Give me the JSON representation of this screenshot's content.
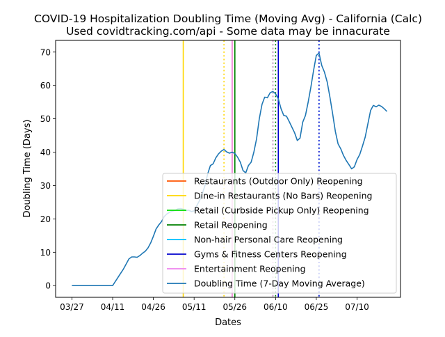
{
  "chart_data": {
    "type": "line",
    "title": "COVID-19 Hospitalization Doubling Time (Moving Avg) - California (Calc)",
    "subtitle": "Used covidtracking.com/api - Some data may be innacurate",
    "xlabel": "Dates",
    "ylabel": "Doubling Time (Days)",
    "x_range": [
      "2020-03-21",
      "2020-07-26"
    ],
    "ylim": [
      -3.5,
      73.5
    ],
    "x_ticks": [
      {
        "date": "2020-03-27",
        "label": "03/27"
      },
      {
        "date": "2020-04-11",
        "label": "04/11"
      },
      {
        "date": "2020-04-26",
        "label": "04/26"
      },
      {
        "date": "2020-05-11",
        "label": "05/11"
      },
      {
        "date": "2020-05-26",
        "label": "05/26"
      },
      {
        "date": "2020-06-10",
        "label": "06/10"
      },
      {
        "date": "2020-06-25",
        "label": "06/25"
      },
      {
        "date": "2020-07-10",
        "label": "07/10"
      }
    ],
    "y_ticks": [
      0,
      10,
      20,
      30,
      40,
      50,
      60,
      70
    ],
    "grid": false,
    "legend_position": "lower-right",
    "events": [
      {
        "name": "Restaurants (Outdoor Only) Reopening",
        "color": "#ff5500",
        "lines": [
          {
            "date": "2020-05-25",
            "style": "solid"
          }
        ]
      },
      {
        "name": "Dine-in Restaurants (No Bars) Reopening",
        "color": "#ffd700",
        "lines": [
          {
            "date": "2020-05-07",
            "style": "solid"
          },
          {
            "date": "2020-05-22",
            "style": "dotted"
          }
        ]
      },
      {
        "name": "Retail (Curbside Pickup Only) Reopening",
        "color": "#00dd00",
        "lines": [
          {
            "date": "2020-05-26",
            "style": "solid"
          },
          {
            "date": "2020-06-09",
            "style": "dotted"
          }
        ]
      },
      {
        "name": "Retail Reopening",
        "color": "#008000",
        "lines": [
          {
            "date": "2020-05-26",
            "style": "solid"
          },
          {
            "date": "2020-06-10",
            "style": "dotted"
          }
        ]
      },
      {
        "name": "Non-hair Personal Care Reopening",
        "color": "#00bfff",
        "lines": [
          {
            "date": "2020-06-26",
            "style": "dotted"
          }
        ]
      },
      {
        "name": "Gyms & Fitness Centers Reopening",
        "color": "#0000cd",
        "lines": [
          {
            "date": "2020-06-11",
            "style": "solid"
          },
          {
            "date": "2020-06-26",
            "style": "dotted"
          }
        ]
      },
      {
        "name": "Entertainment Reopening",
        "color": "#ee82ee",
        "lines": [
          {
            "date": "2020-05-25",
            "style": "solid"
          },
          {
            "date": "2020-06-09",
            "style": "dotted"
          }
        ]
      }
    ],
    "series": [
      {
        "name": "Doubling Time (7-Day Moving Average)",
        "color": "#1f77b4",
        "x": [
          "2020-03-27",
          "2020-03-30",
          "2020-04-02",
          "2020-04-05",
          "2020-04-08",
          "2020-04-11",
          "2020-04-13",
          "2020-04-15",
          "2020-04-17",
          "2020-04-18",
          "2020-04-19",
          "2020-04-20",
          "2020-04-21",
          "2020-04-22",
          "2020-04-23",
          "2020-04-24",
          "2020-04-25",
          "2020-04-26",
          "2020-04-27",
          "2020-04-28",
          "2020-04-29",
          "2020-04-30",
          "2020-05-01",
          "2020-05-02",
          "2020-05-03",
          "2020-05-04",
          "2020-05-05",
          "2020-05-06",
          "2020-05-07",
          "2020-05-08",
          "2020-05-09",
          "2020-05-10",
          "2020-05-11",
          "2020-05-12",
          "2020-05-13",
          "2020-05-14",
          "2020-05-15",
          "2020-05-16",
          "2020-05-17",
          "2020-05-18",
          "2020-05-19",
          "2020-05-20",
          "2020-05-21",
          "2020-05-22",
          "2020-05-23",
          "2020-05-24",
          "2020-05-25",
          "2020-05-26",
          "2020-05-27",
          "2020-05-28",
          "2020-05-29",
          "2020-05-30",
          "2020-05-31",
          "2020-06-01",
          "2020-06-02",
          "2020-06-03",
          "2020-06-04",
          "2020-06-05",
          "2020-06-06",
          "2020-06-07",
          "2020-06-08",
          "2020-06-09",
          "2020-06-10",
          "2020-06-11",
          "2020-06-12",
          "2020-06-13",
          "2020-06-14",
          "2020-06-15",
          "2020-06-16",
          "2020-06-17",
          "2020-06-18",
          "2020-06-19",
          "2020-06-20",
          "2020-06-21",
          "2020-06-22",
          "2020-06-23",
          "2020-06-24",
          "2020-06-25",
          "2020-06-26",
          "2020-06-27",
          "2020-06-28",
          "2020-06-29",
          "2020-06-30",
          "2020-07-01",
          "2020-07-02",
          "2020-07-03",
          "2020-07-04",
          "2020-07-05",
          "2020-07-06",
          "2020-07-07",
          "2020-07-08",
          "2020-07-09",
          "2020-07-10",
          "2020-07-11",
          "2020-07-12",
          "2020-07-13",
          "2020-07-14",
          "2020-07-15",
          "2020-07-16",
          "2020-07-17",
          "2020-07-18",
          "2020-07-19",
          "2020-07-20",
          "2020-07-21"
        ],
        "y": [
          0,
          0,
          0,
          0,
          0,
          0,
          2.5,
          5,
          8,
          8.6,
          8.6,
          8.5,
          9,
          9.7,
          10.3,
          11.3,
          12.8,
          14.8,
          17,
          18.2,
          19.2,
          20.7,
          21.5,
          22,
          22.3,
          22.5,
          23,
          23.1,
          22.9,
          22.5,
          22.6,
          22.2,
          22.4,
          24,
          25.5,
          27.5,
          30,
          33.5,
          36,
          36.5,
          38.3,
          39.5,
          40.3,
          40.8,
          40.1,
          39.7,
          40,
          39.6,
          38.5,
          37,
          34.5,
          33.8,
          36,
          37,
          40,
          44,
          50,
          54.3,
          56.5,
          56.3,
          57.8,
          58.2,
          57.5,
          56,
          53,
          51,
          50.8,
          49.2,
          47.5,
          45.8,
          43.5,
          44.2,
          49,
          51,
          55,
          59.5,
          64.5,
          69,
          69.7,
          66,
          64,
          61,
          56.5,
          51.5,
          46.2,
          42.5,
          41,
          39,
          37.5,
          36.3,
          35,
          35.6,
          37.8,
          39.3,
          41.8,
          44.5,
          48.5,
          52.5,
          54,
          53.6,
          54.1,
          53.7,
          53,
          52.2
        ]
      }
    ]
  }
}
